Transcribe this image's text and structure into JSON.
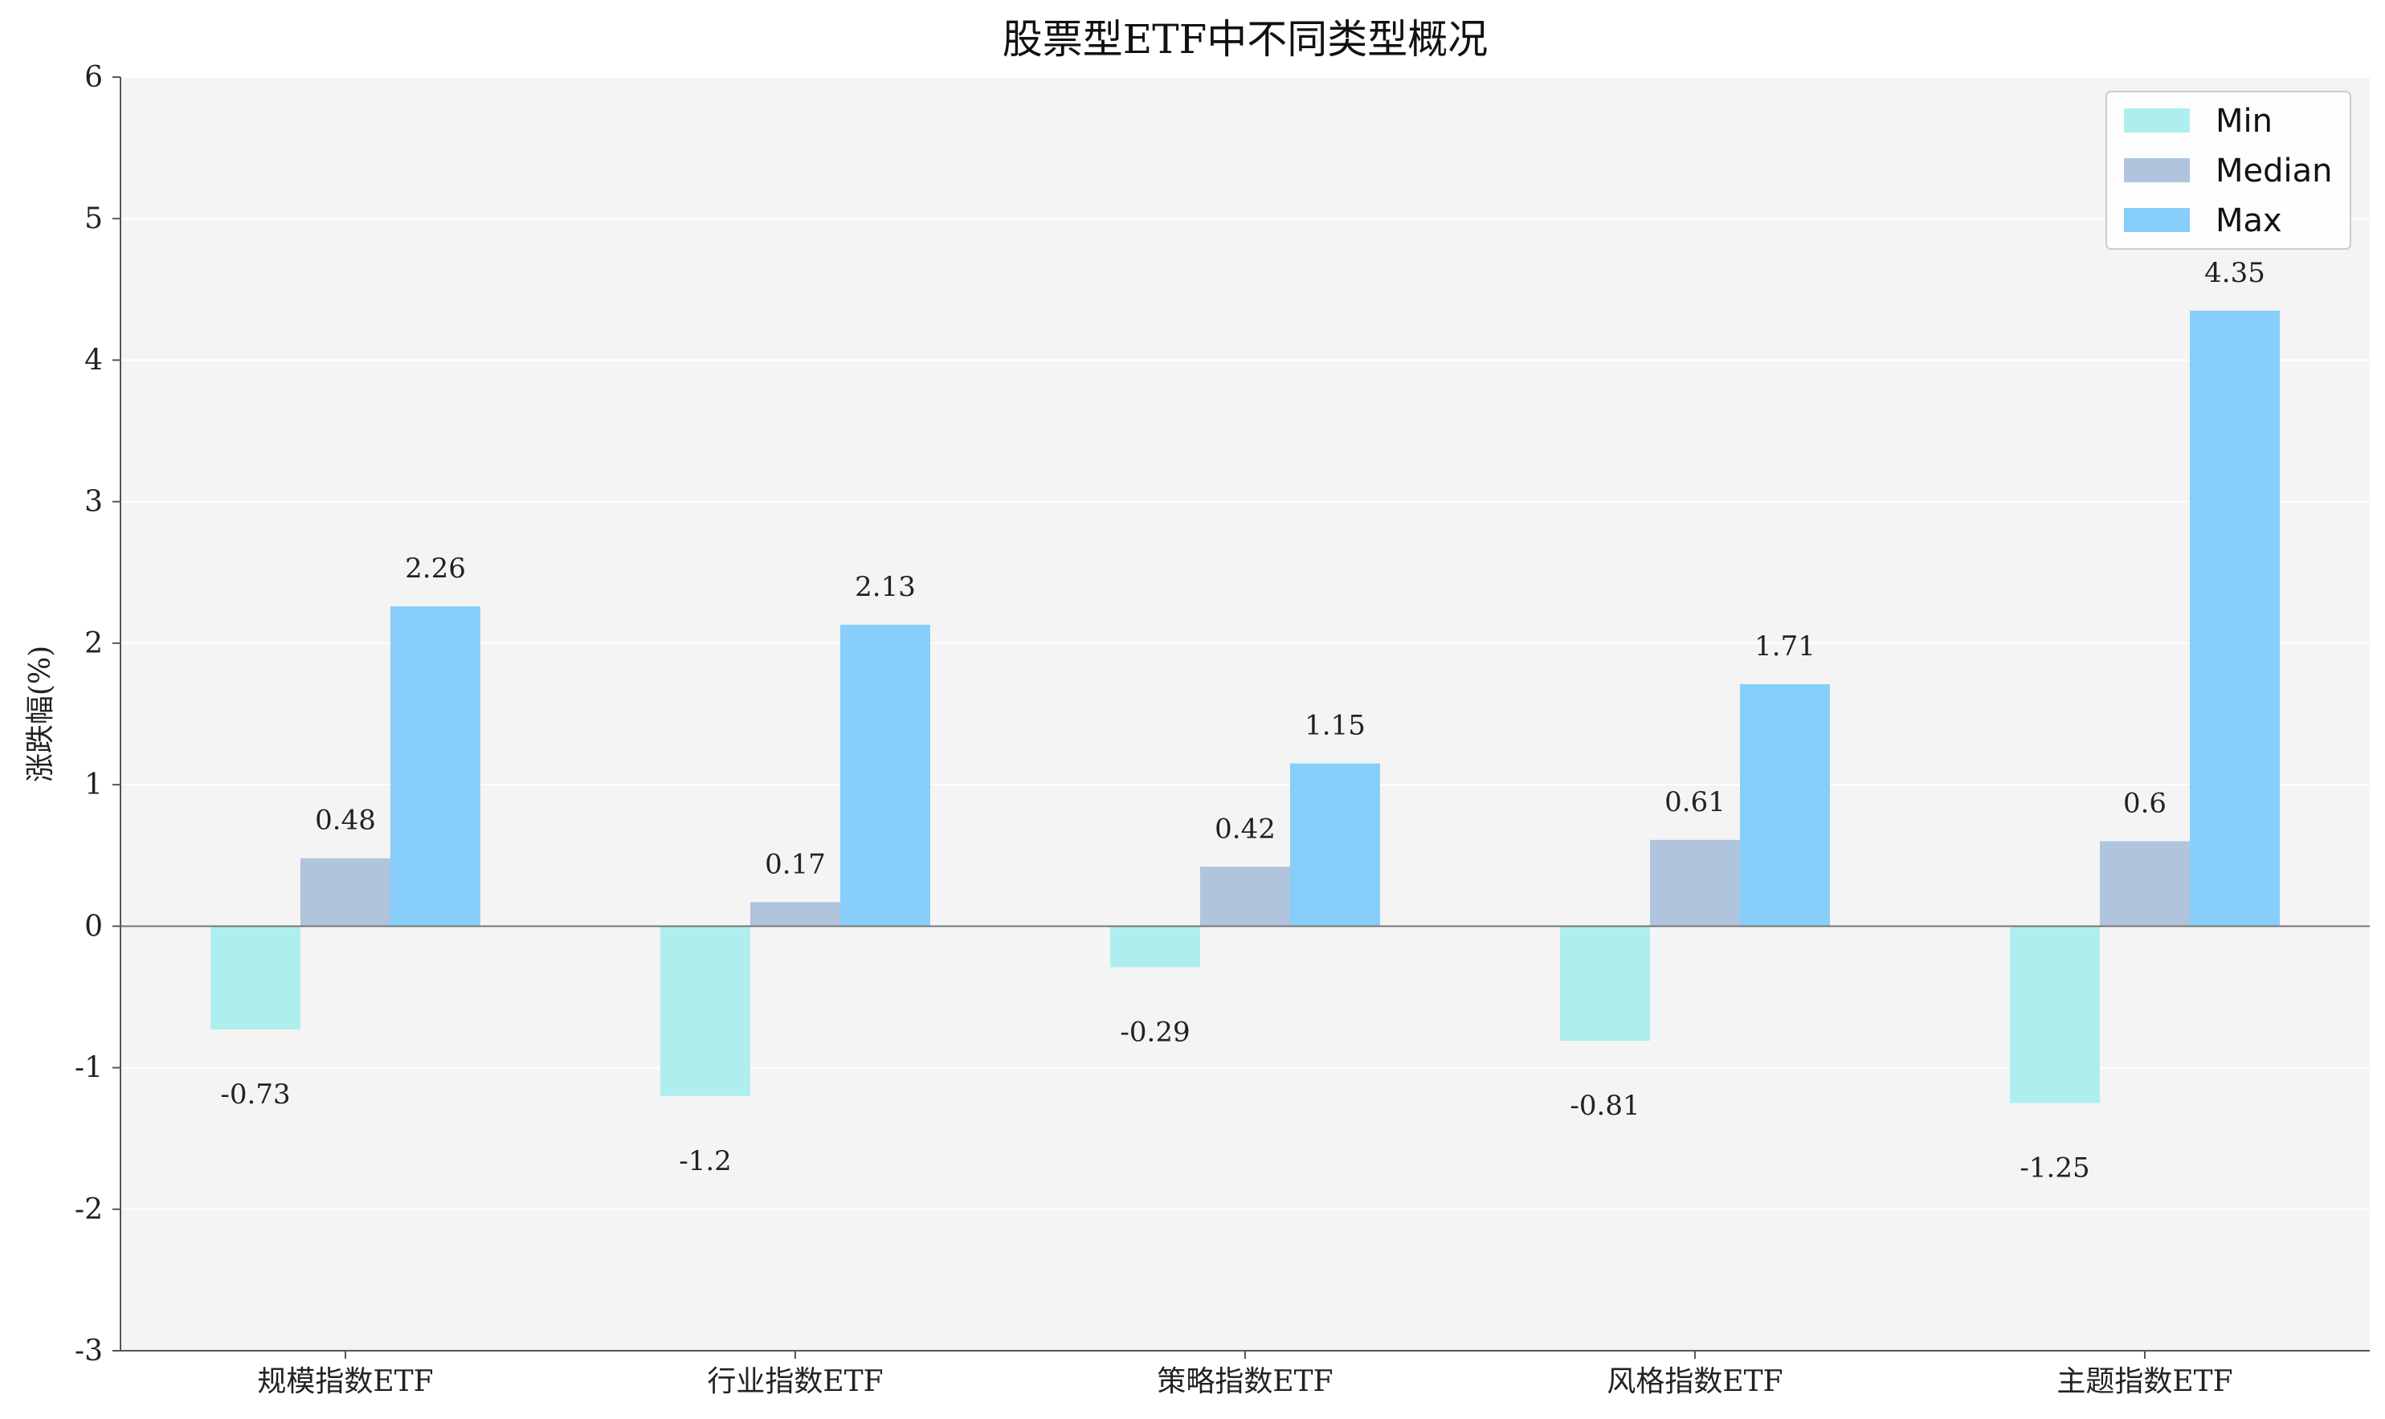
{
  "chart_data": {
    "type": "bar",
    "title": "股票型ETF中不同类型概况",
    "xlabel": "",
    "ylabel": "涨跌幅(%)",
    "ylim": [
      -3,
      6
    ],
    "yticks": [
      "-3",
      "-2",
      "-1",
      "0",
      "1",
      "2",
      "3",
      "4",
      "5",
      "6"
    ],
    "categories": [
      "规模指数ETF",
      "行业指数ETF",
      "策略指数ETF",
      "风格指数ETF",
      "主题指数ETF"
    ],
    "series": [
      {
        "name": "Min",
        "values": [
          -0.73,
          -1.2,
          -0.29,
          -0.81,
          -1.25
        ],
        "labels": [
          "-0.73",
          "-1.2",
          "-0.29",
          "-0.81",
          "-1.25"
        ],
        "color": "#afeeee"
      },
      {
        "name": "Median",
        "values": [
          0.48,
          0.17,
          0.42,
          0.61,
          0.6
        ],
        "labels": [
          "0.48",
          "0.17",
          "0.42",
          "0.61",
          "0.6"
        ],
        "color": "#b0c4de"
      },
      {
        "name": "Max",
        "values": [
          2.26,
          2.13,
          1.15,
          1.71,
          4.35
        ],
        "labels": [
          "2.26",
          "2.13",
          "1.15",
          "1.71",
          "4.35"
        ],
        "color": "#87cefa"
      }
    ],
    "grid": true,
    "legend_position": "top-right",
    "colors": {
      "plot_background": "#f4f4f4",
      "grid": "#ffffff",
      "axis": "#555555",
      "zero_line": "#777777"
    }
  }
}
